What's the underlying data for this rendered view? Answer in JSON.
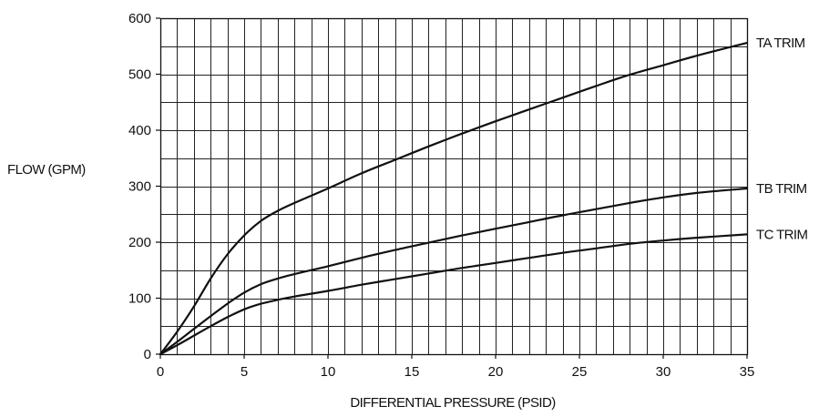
{
  "chart_data": {
    "type": "line",
    "title": "",
    "xlabel": "DIFFERENTIAL PRESSURE (PSID)",
    "ylabel": "FLOW (GPM)",
    "xlim": [
      0,
      35
    ],
    "ylim": [
      0,
      600
    ],
    "x_ticks": [
      0,
      5,
      10,
      15,
      20,
      25,
      30,
      35
    ],
    "y_ticks": [
      0,
      100,
      200,
      300,
      400,
      500,
      600
    ],
    "x_minor_step": 1,
    "y_minor_step": 50,
    "grid": true,
    "series": [
      {
        "name": "TA TRIM",
        "points": [
          [
            0,
            0
          ],
          [
            1,
            40
          ],
          [
            2,
            85
          ],
          [
            3,
            135
          ],
          [
            4,
            178
          ],
          [
            5,
            212
          ],
          [
            6,
            238
          ],
          [
            7,
            256
          ],
          [
            8,
            270
          ],
          [
            10,
            296
          ],
          [
            12,
            323
          ],
          [
            14,
            347
          ],
          [
            16,
            371
          ],
          [
            18,
            394
          ],
          [
            20,
            416
          ],
          [
            22,
            437
          ],
          [
            24,
            458
          ],
          [
            26,
            479
          ],
          [
            28,
            499
          ],
          [
            30,
            516
          ],
          [
            32,
            533
          ],
          [
            35,
            556
          ]
        ]
      },
      {
        "name": "TB TRIM",
        "points": [
          [
            0,
            0
          ],
          [
            1,
            22
          ],
          [
            2,
            45
          ],
          [
            3,
            68
          ],
          [
            4,
            90
          ],
          [
            5,
            110
          ],
          [
            6,
            125
          ],
          [
            7,
            135
          ],
          [
            8,
            143
          ],
          [
            10,
            157
          ],
          [
            12,
            172
          ],
          [
            14,
            186
          ],
          [
            16,
            199
          ],
          [
            18,
            212
          ],
          [
            20,
            224
          ],
          [
            22,
            236
          ],
          [
            24,
            248
          ],
          [
            26,
            259
          ],
          [
            28,
            270
          ],
          [
            30,
            280
          ],
          [
            32,
            288
          ],
          [
            35,
            296
          ]
        ]
      },
      {
        "name": "TC TRIM",
        "points": [
          [
            0,
            0
          ],
          [
            1,
            16
          ],
          [
            2,
            33
          ],
          [
            3,
            50
          ],
          [
            4,
            66
          ],
          [
            5,
            80
          ],
          [
            6,
            90
          ],
          [
            7,
            97
          ],
          [
            8,
            103
          ],
          [
            10,
            113
          ],
          [
            12,
            124
          ],
          [
            14,
            134
          ],
          [
            16,
            144
          ],
          [
            18,
            154
          ],
          [
            20,
            163
          ],
          [
            22,
            172
          ],
          [
            24,
            181
          ],
          [
            26,
            189
          ],
          [
            28,
            197
          ],
          [
            30,
            203
          ],
          [
            32,
            208
          ],
          [
            35,
            214
          ]
        ]
      }
    ]
  }
}
